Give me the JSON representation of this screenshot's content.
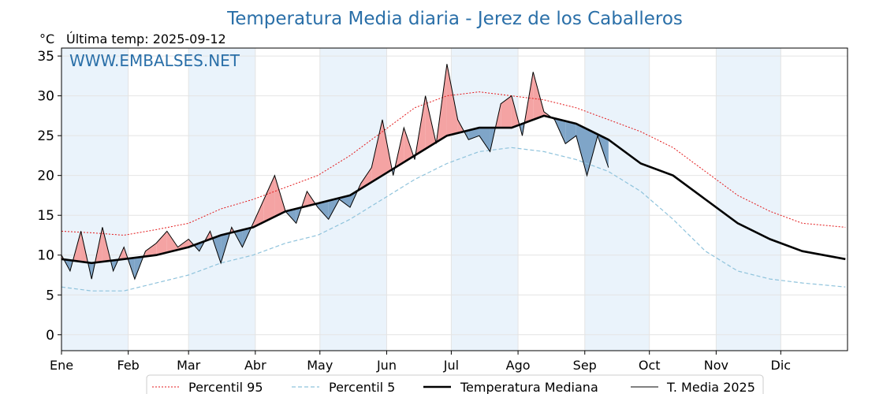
{
  "header": {
    "title": "Temperatura Media diaria - Jerez de los Caballeros",
    "unit": "°C",
    "last_temp": "Última temp: 2025-09-12",
    "watermark": "WWW.EMBALSES.NET"
  },
  "legend": [
    "Percentil 95",
    "Percentil 5",
    "Temperatura Mediana",
    "T. Media 2025"
  ],
  "colors": {
    "p95": "#e31a1c",
    "p5": "#8fc3dc",
    "median": "#000000",
    "year": "#000000",
    "above": "#f4a3a3",
    "below": "#7fa5c8",
    "title": "#2a6fa8",
    "band": "#eaf3fb"
  },
  "chart_data": {
    "type": "line",
    "title": "Temperatura Media diaria - Jerez de los Caballeros",
    "ylabel": "°C",
    "ylim": [
      -2,
      36
    ],
    "yticks": [
      0,
      5,
      10,
      15,
      20,
      25,
      30,
      35
    ],
    "xlim": [
      1,
      366
    ],
    "months": [
      "Ene",
      "Feb",
      "Mar",
      "Abr",
      "May",
      "Jun",
      "Jul",
      "Ago",
      "Sep",
      "Oct",
      "Nov",
      "Dic"
    ],
    "month_starts": [
      1,
      32,
      60,
      91,
      121,
      152,
      182,
      213,
      244,
      274,
      305,
      335
    ],
    "grid": true,
    "legend_position": "bottom",
    "series": [
      {
        "name": "Percentil 95",
        "x": [
          1,
          15,
          30,
          45,
          60,
          75,
          90,
          105,
          120,
          135,
          150,
          165,
          180,
          195,
          210,
          225,
          240,
          255,
          270,
          285,
          300,
          315,
          330,
          345,
          365
        ],
        "values": [
          13,
          12.8,
          12.5,
          13.2,
          14,
          15.8,
          17,
          18.5,
          20,
          22.5,
          25.5,
          28.5,
          30,
          30.5,
          30,
          29.5,
          28.5,
          27,
          25.5,
          23.5,
          20.5,
          17.5,
          15.5,
          14,
          13.5
        ]
      },
      {
        "name": "Percentil 5",
        "x": [
          1,
          15,
          30,
          45,
          60,
          75,
          90,
          105,
          120,
          135,
          150,
          165,
          180,
          195,
          210,
          225,
          240,
          255,
          270,
          285,
          300,
          315,
          330,
          345,
          365
        ],
        "values": [
          6,
          5.5,
          5.5,
          6.5,
          7.5,
          9,
          10,
          11.5,
          12.5,
          14.5,
          17,
          19.5,
          21.5,
          23,
          23.5,
          23,
          22,
          20.5,
          18,
          14.5,
          10.5,
          8,
          7,
          6.5,
          6
        ]
      },
      {
        "name": "Temperatura Mediana",
        "x": [
          1,
          15,
          30,
          45,
          60,
          75,
          90,
          105,
          120,
          135,
          150,
          165,
          180,
          195,
          210,
          225,
          240,
          255,
          270,
          285,
          300,
          315,
          330,
          345,
          365
        ],
        "values": [
          9.5,
          9,
          9.5,
          10,
          11,
          12.5,
          13.5,
          15.5,
          16.5,
          17.5,
          20,
          22.5,
          25,
          26,
          26,
          27.5,
          26.5,
          24.5,
          21.5,
          20,
          17,
          14,
          12,
          10.5,
          9.5
        ]
      },
      {
        "name": "T. Media 2025",
        "x": [
          1,
          5,
          10,
          15,
          20,
          25,
          30,
          35,
          40,
          45,
          50,
          55,
          60,
          65,
          70,
          75,
          80,
          85,
          90,
          95,
          100,
          105,
          110,
          115,
          120,
          125,
          130,
          135,
          140,
          145,
          150,
          155,
          160,
          165,
          170,
          175,
          180,
          185,
          190,
          195,
          200,
          205,
          210,
          215,
          220,
          225,
          230,
          235,
          240,
          245,
          250,
          255
        ],
        "values": [
          10,
          8,
          13,
          7,
          13.5,
          8,
          11,
          7,
          10.5,
          11.5,
          13,
          11,
          12,
          10.5,
          13,
          9,
          13.5,
          11,
          14,
          17,
          20,
          15.5,
          14,
          18,
          16,
          14.5,
          17,
          16,
          19,
          21,
          27,
          20,
          26,
          22,
          30,
          24,
          34,
          27,
          24.5,
          25,
          23,
          29,
          30,
          25,
          33,
          28,
          27,
          24,
          25,
          20,
          25,
          21
        ]
      }
    ]
  }
}
